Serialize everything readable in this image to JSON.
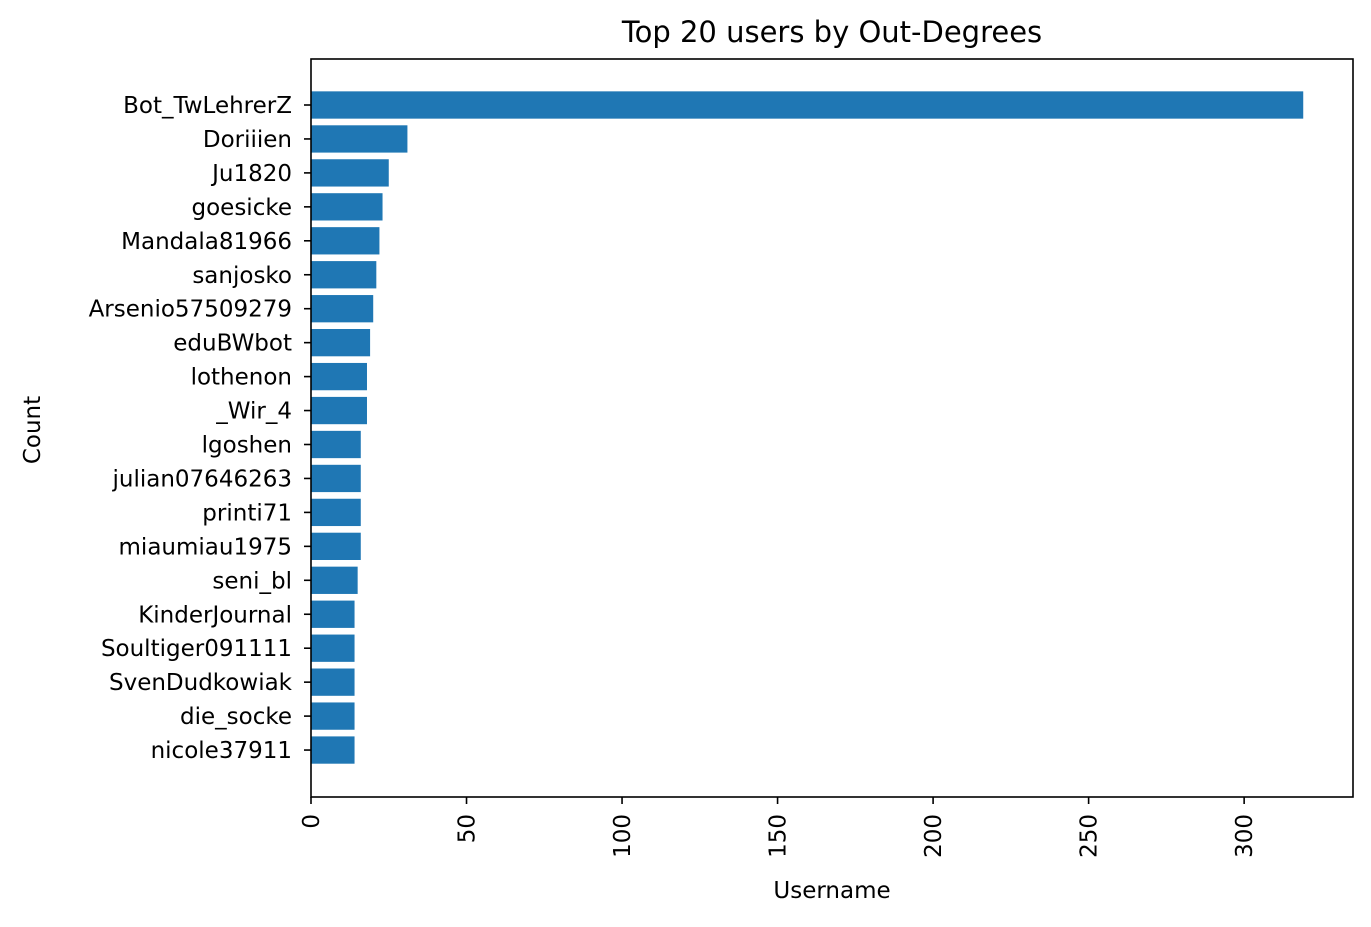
{
  "chart_data": {
    "type": "bar",
    "orientation": "horizontal",
    "title": "Top 20 users by Out-Degrees",
    "xlabel": "Username",
    "ylabel": "Count",
    "xlim": [
      0,
      335
    ],
    "xticks": [
      0,
      50,
      100,
      150,
      200,
      250,
      300
    ],
    "grid": false,
    "bar_color": "#1f77b4",
    "categories": [
      "Bot_TwLehrerZ",
      "Doriiien",
      "Ju1820",
      "goesicke",
      "Mandala81966",
      "sanjosko",
      "Arsenio57509279",
      "eduBWbot",
      "lothenon",
      "_Wir_4",
      "lgoshen",
      "julian07646263",
      "printi71",
      "miaumiau1975",
      "seni_bl",
      "KinderJournal",
      "Soultiger091111",
      "SvenDudkowiak",
      "die_socke",
      "nicole37911"
    ],
    "values": [
      319,
      31,
      25,
      23,
      22,
      21,
      20,
      19,
      18,
      18,
      16,
      16,
      16,
      16,
      15,
      14,
      14,
      14,
      14,
      14
    ]
  }
}
